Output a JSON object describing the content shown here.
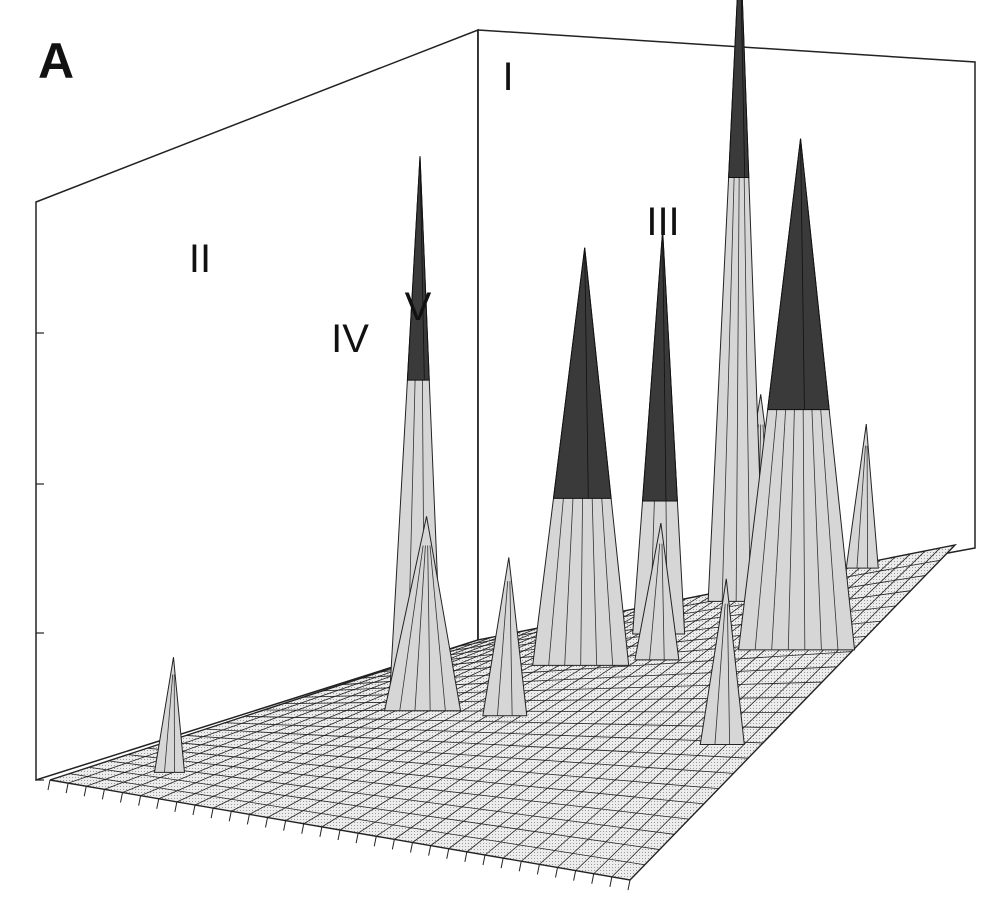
{
  "panel_label": "A",
  "chart_data": {
    "type": "3d-surface",
    "description_free": true,
    "peaks": [
      {
        "label": "I",
        "height": 0.92
      },
      {
        "label": "II",
        "height": 0.74
      },
      {
        "label": "III",
        "height": 0.71
      },
      {
        "label": "IV",
        "height": 0.58
      },
      {
        "label": "V",
        "height": 0.56
      }
    ],
    "minor_peaks": [
      {
        "height": 0.16
      },
      {
        "height": 0.27
      },
      {
        "height": 0.22
      },
      {
        "height": 0.19
      },
      {
        "height": 0.28
      },
      {
        "height": 0.23
      },
      {
        "height": 0.2
      }
    ],
    "grid": true,
    "colors": {
      "peak_top": "#3a3a3a",
      "peak_base": "#d6d6d6",
      "grid_fill": "#bdbdbd",
      "grid_line": "#222222",
      "wall_line": "#222222"
    }
  }
}
